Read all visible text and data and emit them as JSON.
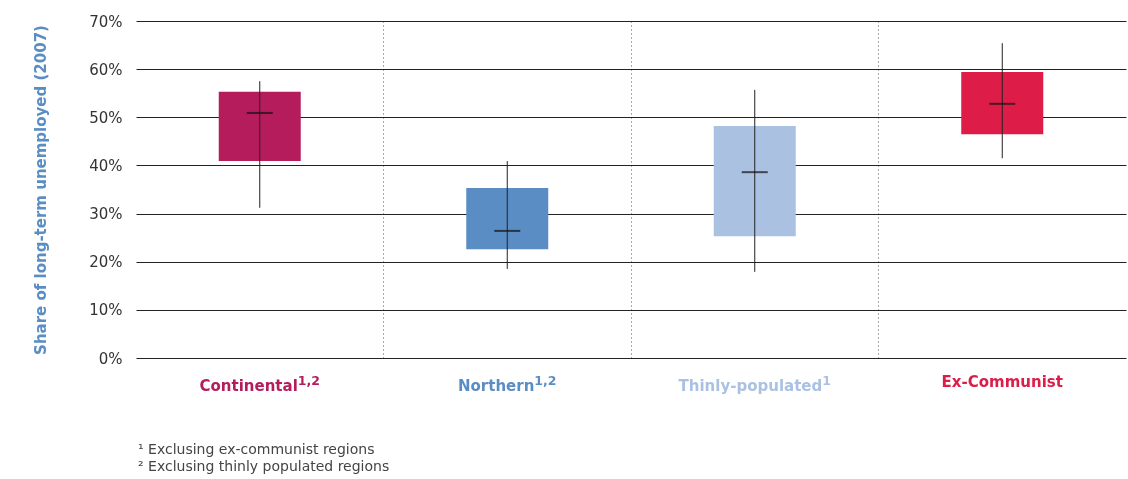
{
  "chart_data": {
    "type": "box",
    "ylabel": "Share of long-term unemployed (2007)",
    "categories": [
      "Continental$^{1,2}$",
      "Northern$^{1,2}$",
      "Thinly-populated$^{1}$",
      "Ex-Communist"
    ],
    "colors": [
      "#b51c5c",
      "#5b8dc5",
      "#abc1e2",
      "#dd1c48"
    ],
    "boxes": [
      {
        "low": 31.2,
        "q1": 40.9,
        "median": 50.9,
        "q3": 55.3,
        "high": 57.5
      },
      {
        "low": 18.5,
        "q1": 22.6,
        "median": 26.4,
        "q3": 35.3,
        "high": 40.9
      },
      {
        "low": 17.9,
        "q1": 25.3,
        "median": 38.6,
        "q3": 48.2,
        "high": 55.7
      },
      {
        "low": 41.5,
        "q1": 46.5,
        "median": 52.8,
        "q3": 59.4,
        "high": 65.4
      }
    ],
    "ylim": [
      0,
      70
    ],
    "yticks": [
      {
        "value": 0,
        "label": "0%"
      },
      {
        "value": 10,
        "label": "10%"
      },
      {
        "value": 20,
        "label": "20%"
      },
      {
        "value": 30,
        "label": "30%"
      },
      {
        "value": 40,
        "label": "40%"
      },
      {
        "value": 50,
        "label": "50%"
      },
      {
        "value": 60,
        "label": "60%"
      },
      {
        "value": 70,
        "label": "70%"
      }
    ],
    "grid": true,
    "annotations": [
      "¹ Exclusing ex-communist regions",
      "² Exclusing thinly populated regions"
    ]
  }
}
